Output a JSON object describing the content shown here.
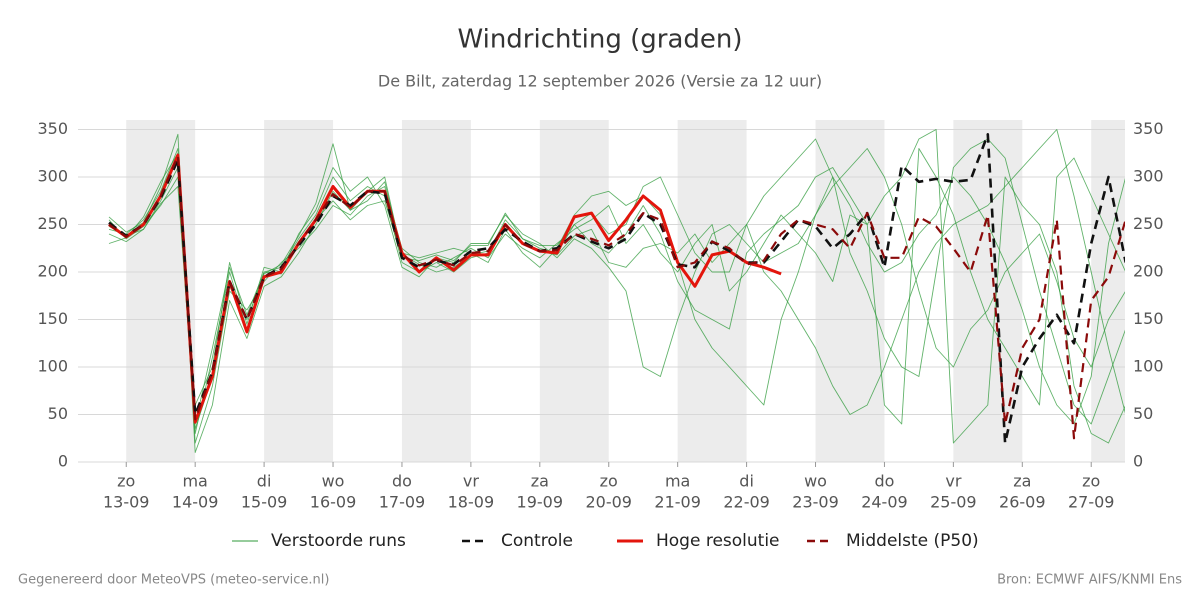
{
  "chart_data": {
    "type": "line",
    "title": "Windrichting (graden)",
    "subtitle": "De Bilt, zaterdag 12 september 2026 (Versie za 12 uur)",
    "footer_left": "Gegenereerd door MeteoVPS (meteo-service.nl)",
    "footer_right": "Bron: ECMWF AIFS/KNMI Ens",
    "x": [
      12.75,
      13,
      13.25,
      13.5,
      13.75,
      14,
      14.25,
      14.5,
      14.75,
      15,
      15.25,
      15.5,
      15.75,
      16,
      16.25,
      16.5,
      16.75,
      17,
      17.25,
      17.5,
      17.75,
      18,
      18.25,
      18.5,
      18.75,
      19,
      19.25,
      19.5,
      19.75,
      20,
      20.25,
      20.5,
      20.75,
      21,
      21.25,
      21.5,
      21.75,
      22,
      22.25,
      22.5,
      22.75,
      23,
      23.25,
      23.5,
      23.75,
      24,
      24.25,
      24.5,
      24.75,
      25,
      25.25,
      25.5,
      25.75,
      26,
      26.25,
      26.5,
      26.75,
      27,
      27.25,
      27.5
    ],
    "xlim": [
      12.3,
      27.49
    ],
    "xticks": [
      {
        "value": 13,
        "label": "13-09"
      },
      {
        "value": 14,
        "label": "14-09"
      },
      {
        "value": 15,
        "label": "15-09"
      },
      {
        "value": 16,
        "label": "16-09"
      },
      {
        "value": 17,
        "label": "17-09"
      },
      {
        "value": 18,
        "label": "18-09"
      },
      {
        "value": 19,
        "label": "19-09"
      },
      {
        "value": 20,
        "label": "20-09"
      },
      {
        "value": 21,
        "label": "21-09"
      },
      {
        "value": 22,
        "label": "22-09"
      },
      {
        "value": 23,
        "label": "23-09"
      },
      {
        "value": 24,
        "label": "24-09"
      },
      {
        "value": 25,
        "label": "25-09"
      },
      {
        "value": 26,
        "label": "26-09"
      },
      {
        "value": 27,
        "label": "27-09"
      }
    ],
    "xtick_weekdays": [
      "zo",
      "ma",
      "di",
      "wo",
      "do",
      "vr",
      "za",
      "zo",
      "ma",
      "di",
      "wo",
      "do",
      "vr",
      "za",
      "zo"
    ],
    "shade_alternate_days": true,
    "ylim": [
      0,
      360
    ],
    "yticks": [
      0,
      50,
      100,
      150,
      200,
      250,
      300,
      350
    ],
    "right_axis": true,
    "grid": true,
    "legend": "bottom",
    "ensemble": {
      "name": "Verstoorde runs",
      "color": "#2e9a3a",
      "members": [
        [
          255,
          235,
          248,
          270,
          300,
          30,
          110,
          200,
          140,
          200,
          205,
          235,
          260,
          300,
          275,
          290,
          280,
          210,
          200,
          210,
          200,
          215,
          220,
          255,
          235,
          225,
          220,
          250,
          230,
          220,
          240,
          270,
          240,
          190,
          160,
          150,
          140,
          220,
          240,
          255,
          270,
          300,
          310,
          280,
          250,
          60,
          40,
          330,
          300,
          260,
          200,
          150,
          120,
          90,
          60,
          300,
          320,
          280,
          240,
          200
        ],
        [
          245,
          240,
          255,
          285,
          330,
          20,
          80,
          180,
          160,
          190,
          210,
          225,
          245,
          270,
          260,
          280,
          290,
          225,
          210,
          205,
          215,
          225,
          215,
          240,
          225,
          215,
          230,
          245,
          255,
          270,
          230,
          250,
          220,
          200,
          230,
          250,
          180,
          200,
          230,
          260,
          240,
          220,
          190,
          260,
          250,
          280,
          300,
          340,
          350,
          20,
          40,
          60,
          300,
          270,
          250,
          200,
          80,
          30,
          20,
          60
        ],
        [
          240,
          232,
          245,
          275,
          310,
          60,
          100,
          210,
          145,
          205,
          200,
          240,
          265,
          310,
          285,
          300,
          270,
          205,
          195,
          215,
          210,
          230,
          230,
          260,
          240,
          230,
          215,
          235,
          225,
          205,
          180,
          100,
          90,
          150,
          200,
          240,
          250,
          230,
          210,
          220,
          230,
          260,
          290,
          310,
          330,
          300,
          250,
          180,
          120,
          100,
          140,
          160,
          200,
          220,
          240,
          190,
          130,
          100,
          150,
          180
        ],
        [
          258,
          242,
          252,
          290,
          345,
          10,
          60,
          170,
          130,
          185,
          195,
          220,
          250,
          285,
          265,
          275,
          295,
          220,
          215,
          220,
          225,
          220,
          210,
          245,
          220,
          205,
          225,
          260,
          280,
          285,
          270,
          280,
          260,
          210,
          150,
          120,
          100,
          80,
          60,
          150,
          200,
          260,
          300,
          220,
          180,
          130,
          100,
          90,
          200,
          310,
          330,
          340,
          320,
          250,
          180,
          120,
          60,
          40,
          90,
          140
        ],
        [
          248,
          238,
          245,
          272,
          290,
          40,
          120,
          205,
          155,
          200,
          198,
          232,
          255,
          275,
          255,
          270,
          275,
          215,
          212,
          218,
          212,
          228,
          228,
          262,
          235,
          228,
          228,
          250,
          262,
          240,
          250,
          290,
          300,
          260,
          220,
          200,
          200,
          250,
          280,
          300,
          320,
          340,
          300,
          270,
          230,
          200,
          210,
          240,
          260,
          300,
          280,
          250,
          210,
          160,
          100,
          60,
          40,
          90,
          230,
          300
        ],
        [
          230,
          236,
          258,
          295,
          325,
          35,
          90,
          185,
          150,
          198,
          208,
          238,
          272,
          335,
          265,
          285,
          300,
          218,
          208,
          200,
          205,
          218,
          222,
          248,
          230,
          222,
          218,
          238,
          245,
          210,
          205,
          225,
          230,
          220,
          240,
          210,
          230,
          250,
          200,
          180,
          150,
          120,
          80,
          50,
          60,
          100,
          150,
          200,
          230,
          250,
          260,
          270,
          290,
          310,
          330,
          350,
          280,
          200,
          120,
          50
        ]
      ]
    },
    "series": [
      {
        "name": "Controle",
        "color": "#111111",
        "dash": true,
        "values": [
          252,
          238,
          250,
          278,
          318,
          50,
          95,
          190,
          150,
          195,
          205,
          228,
          250,
          280,
          270,
          285,
          283,
          215,
          205,
          212,
          208,
          222,
          225,
          245,
          232,
          222,
          225,
          240,
          232,
          225,
          235,
          262,
          250,
          208,
          205,
          232,
          222,
          210,
          210,
          232,
          255,
          248,
          225,
          240,
          262,
          205,
          312,
          295,
          298,
          295,
          297,
          345,
          20,
          100,
          130,
          155,
          125,
          230,
          300,
          210
        ]
      },
      {
        "name": "Hoge resolutie",
        "color": "#e3150c",
        "dash": false,
        "values": [
          250,
          237,
          250,
          280,
          323,
          42,
          90,
          190,
          137,
          195,
          200,
          230,
          255,
          290,
          268,
          285,
          285,
          220,
          200,
          215,
          202,
          218,
          218,
          250,
          230,
          222,
          220,
          258,
          262,
          233,
          255,
          280,
          265,
          210,
          185,
          218,
          222,
          210,
          205,
          198,
          null,
          null,
          null,
          null,
          null,
          null,
          null,
          null,
          null,
          null,
          null,
          null,
          null,
          null,
          null,
          null,
          null,
          null,
          null,
          null
        ]
      },
      {
        "name": "Middelste (P50)",
        "color": "#8b0a0a",
        "dash": true,
        "values": [
          250,
          237,
          250,
          280,
          322,
          45,
          95,
          190,
          150,
          195,
          203,
          230,
          255,
          282,
          268,
          285,
          285,
          218,
          207,
          213,
          207,
          220,
          222,
          250,
          230,
          222,
          223,
          240,
          235,
          228,
          240,
          262,
          255,
          205,
          210,
          232,
          225,
          208,
          212,
          240,
          255,
          250,
          245,
          225,
          262,
          215,
          215,
          258,
          248,
          225,
          200,
          260,
          40,
          120,
          150,
          255,
          25,
          170,
          195,
          255
        ]
      }
    ]
  }
}
